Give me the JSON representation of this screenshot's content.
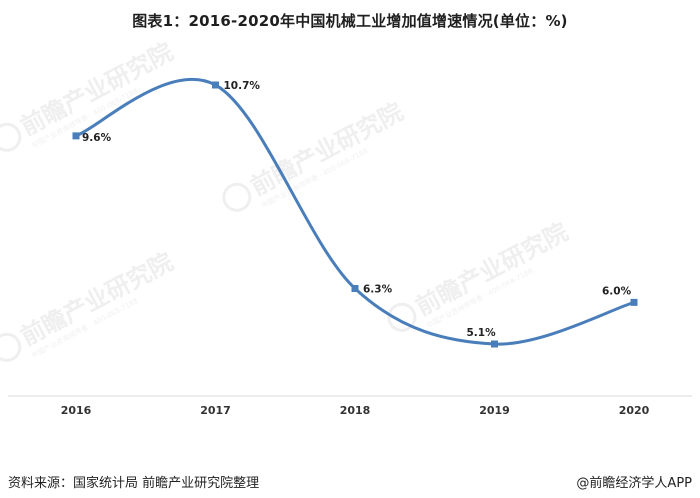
{
  "title": "图表1：2016-2020年中国机械工业增加值增速情况(单位：%)",
  "source": "资料来源：国家统计局 前瞻产业研究院整理",
  "brand": "@前瞻经济学人APP",
  "watermark": {
    "text": "前瞻产业研究院",
    "sub": "中国产业咨询领导者 · 400-068-7188"
  },
  "chart_data": {
    "type": "line",
    "title": "图表1：2016-2020年中国机械工业增加值增速情况(单位：%)",
    "categories": [
      "2016",
      "2017",
      "2018",
      "2019",
      "2020"
    ],
    "series": [
      {
        "values": [
          9.6,
          10.7,
          6.3,
          5.1,
          6.0
        ],
        "labels": [
          "9.6%",
          "10.7%",
          "6.3%",
          "5.1%",
          "6.0%"
        ],
        "color": "#4a7ebb"
      }
    ],
    "xlabel": "",
    "ylabel": "",
    "smooth": true,
    "grid": false
  }
}
